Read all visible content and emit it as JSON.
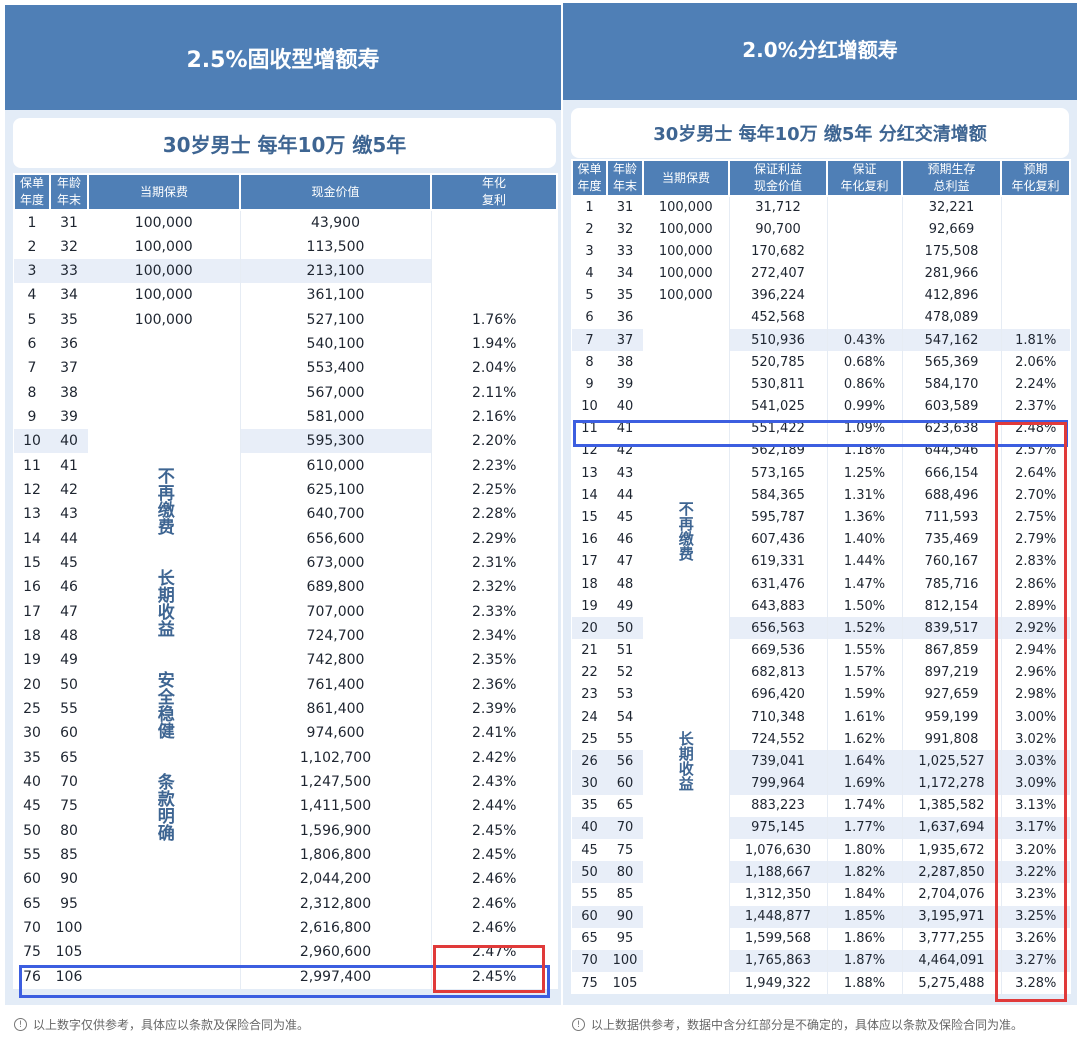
{
  "left": {
    "title": "2.5%固收型增额寿",
    "subtitle": "30岁男士  每年10万 缴5年",
    "headers": [
      "保单年度",
      "年龄年末",
      "当期保费",
      "现金价值",
      "年化复利"
    ],
    "headers_lines": [
      [
        "保单",
        "年度"
      ],
      [
        "年龄",
        "年末"
      ],
      [
        "当期保费"
      ],
      [
        "现金价值"
      ],
      [
        "年化",
        "复利"
      ]
    ],
    "segment_text": [
      "不再缴费",
      "长期收益",
      "安全稳健",
      "条款明确"
    ],
    "rows": [
      [
        "1",
        "31",
        "100,000",
        "43,900",
        ""
      ],
      [
        "2",
        "32",
        "100,000",
        "113,500",
        ""
      ],
      [
        "3",
        "33",
        "100,000",
        "213,100",
        ""
      ],
      [
        "4",
        "34",
        "100,000",
        "361,100",
        ""
      ],
      [
        "5",
        "35",
        "100,000",
        "527,100",
        "1.76%"
      ],
      [
        "6",
        "36",
        "",
        "540,100",
        "1.94%"
      ],
      [
        "7",
        "37",
        "",
        "553,400",
        "2.04%"
      ],
      [
        "8",
        "38",
        "",
        "567,000",
        "2.11%"
      ],
      [
        "9",
        "39",
        "",
        "581,000",
        "2.16%"
      ],
      [
        "10",
        "40",
        "",
        "595,300",
        "2.20%"
      ],
      [
        "11",
        "41",
        "",
        "610,000",
        "2.23%"
      ],
      [
        "12",
        "42",
        "",
        "625,100",
        "2.25%"
      ],
      [
        "13",
        "43",
        "",
        "640,700",
        "2.28%"
      ],
      [
        "14",
        "44",
        "",
        "656,600",
        "2.29%"
      ],
      [
        "15",
        "45",
        "",
        "673,000",
        "2.31%"
      ],
      [
        "16",
        "46",
        "",
        "689,800",
        "2.32%"
      ],
      [
        "17",
        "47",
        "",
        "707,000",
        "2.33%"
      ],
      [
        "18",
        "48",
        "",
        "724,700",
        "2.34%"
      ],
      [
        "19",
        "49",
        "",
        "742,800",
        "2.35%"
      ],
      [
        "20",
        "50",
        "",
        "761,400",
        "2.36%"
      ],
      [
        "25",
        "55",
        "",
        "861,400",
        "2.39%"
      ],
      [
        "30",
        "60",
        "",
        "974,600",
        "2.41%"
      ],
      [
        "35",
        "65",
        "",
        "1,102,700",
        "2.42%"
      ],
      [
        "40",
        "70",
        "",
        "1,247,500",
        "2.43%"
      ],
      [
        "45",
        "75",
        "",
        "1,411,500",
        "2.44%"
      ],
      [
        "50",
        "80",
        "",
        "1,596,900",
        "2.45%"
      ],
      [
        "55",
        "85",
        "",
        "1,806,800",
        "2.45%"
      ],
      [
        "60",
        "90",
        "",
        "2,044,200",
        "2.46%"
      ],
      [
        "65",
        "95",
        "",
        "2,312,800",
        "2.46%"
      ],
      [
        "70",
        "100",
        "",
        "2,616,800",
        "2.46%"
      ],
      [
        "75",
        "105",
        "",
        "2,960,600",
        "2.47%"
      ],
      [
        "76",
        "106",
        "",
        "2,997,400",
        "2.45%"
      ]
    ],
    "note": "以上数字仅供参考，具体应以条款及保险合同为准。"
  },
  "right": {
    "title": "2.0%分红增额寿",
    "subtitle": "30岁男士  每年10万 缴5年  分红交清增额",
    "headers_lines": [
      [
        "保单",
        "年度"
      ],
      [
        "年龄",
        "年末"
      ],
      [
        "当期保费"
      ],
      [
        "保证利益",
        "现金价值"
      ],
      [
        "保证",
        "年化复利"
      ],
      [
        "预期生存",
        "总利益"
      ],
      [
        "预期",
        "年化复利"
      ]
    ],
    "segment_text": [
      "不再缴费",
      "长期收益"
    ],
    "rows": [
      [
        "1",
        "31",
        "100,000",
        "31,712",
        "",
        "32,221",
        ""
      ],
      [
        "2",
        "32",
        "100,000",
        "90,700",
        "",
        "92,669",
        ""
      ],
      [
        "3",
        "33",
        "100,000",
        "170,682",
        "",
        "175,508",
        ""
      ],
      [
        "4",
        "34",
        "100,000",
        "272,407",
        "",
        "281,966",
        ""
      ],
      [
        "5",
        "35",
        "100,000",
        "396,224",
        "",
        "412,896",
        ""
      ],
      [
        "6",
        "36",
        "",
        "452,568",
        "",
        "478,089",
        ""
      ],
      [
        "7",
        "37",
        "",
        "510,936",
        "0.43%",
        "547,162",
        "1.81%"
      ],
      [
        "8",
        "38",
        "",
        "520,785",
        "0.68%",
        "565,369",
        "2.06%"
      ],
      [
        "9",
        "39",
        "",
        "530,811",
        "0.86%",
        "584,170",
        "2.24%"
      ],
      [
        "10",
        "40",
        "",
        "541,025",
        "0.99%",
        "603,589",
        "2.37%"
      ],
      [
        "11",
        "41",
        "",
        "551,422",
        "1.09%",
        "623,638",
        "2.48%"
      ],
      [
        "12",
        "42",
        "",
        "562,189",
        "1.18%",
        "644,546",
        "2.57%"
      ],
      [
        "13",
        "43",
        "",
        "573,165",
        "1.25%",
        "666,154",
        "2.64%"
      ],
      [
        "14",
        "44",
        "",
        "584,365",
        "1.31%",
        "688,496",
        "2.70%"
      ],
      [
        "15",
        "45",
        "",
        "595,787",
        "1.36%",
        "711,593",
        "2.75%"
      ],
      [
        "16",
        "46",
        "",
        "607,436",
        "1.40%",
        "735,469",
        "2.79%"
      ],
      [
        "17",
        "47",
        "",
        "619,331",
        "1.44%",
        "760,167",
        "2.83%"
      ],
      [
        "18",
        "48",
        "",
        "631,476",
        "1.47%",
        "785,716",
        "2.86%"
      ],
      [
        "19",
        "49",
        "",
        "643,883",
        "1.50%",
        "812,154",
        "2.89%"
      ],
      [
        "20",
        "50",
        "",
        "656,563",
        "1.52%",
        "839,517",
        "2.92%"
      ],
      [
        "21",
        "51",
        "",
        "669,536",
        "1.55%",
        "867,859",
        "2.94%"
      ],
      [
        "22",
        "52",
        "",
        "682,813",
        "1.57%",
        "897,219",
        "2.96%"
      ],
      [
        "23",
        "53",
        "",
        "696,420",
        "1.59%",
        "927,659",
        "2.98%"
      ],
      [
        "24",
        "54",
        "",
        "710,348",
        "1.61%",
        "959,199",
        "3.00%"
      ],
      [
        "25",
        "55",
        "",
        "724,552",
        "1.62%",
        "991,808",
        "3.02%"
      ],
      [
        "26",
        "56",
        "",
        "739,041",
        "1.64%",
        "1,025,527",
        "3.03%"
      ],
      [
        "30",
        "60",
        "",
        "799,964",
        "1.69%",
        "1,172,278",
        "3.09%"
      ],
      [
        "35",
        "65",
        "",
        "883,223",
        "1.74%",
        "1,385,582",
        "3.13%"
      ],
      [
        "40",
        "70",
        "",
        "975,145",
        "1.77%",
        "1,637,694",
        "3.17%"
      ],
      [
        "45",
        "75",
        "",
        "1,076,630",
        "1.80%",
        "1,935,672",
        "3.20%"
      ],
      [
        "50",
        "80",
        "",
        "1,188,667",
        "1.82%",
        "2,287,850",
        "3.22%"
      ],
      [
        "55",
        "85",
        "",
        "1,312,350",
        "1.84%",
        "2,704,076",
        "3.23%"
      ],
      [
        "60",
        "90",
        "",
        "1,448,877",
        "1.85%",
        "3,195,971",
        "3.25%"
      ],
      [
        "65",
        "95",
        "",
        "1,599,568",
        "1.86%",
        "3,777,255",
        "3.26%"
      ],
      [
        "70",
        "100",
        "",
        "1,765,863",
        "1.87%",
        "4,464,091",
        "3.27%"
      ],
      [
        "75",
        "105",
        "",
        "1,949,322",
        "1.88%",
        "5,275,488",
        "3.28%"
      ]
    ],
    "note": "以上数据供参考，数据中含分红部分是不确定的，具体应以条款及保险合同为准。"
  },
  "colors": {
    "header": "#4f7fb6",
    "accent_text": "#3e6592",
    "row_highlight": "#e8eef8",
    "blue_box": "#3c5ee0",
    "red_box": "#e03a3a"
  }
}
